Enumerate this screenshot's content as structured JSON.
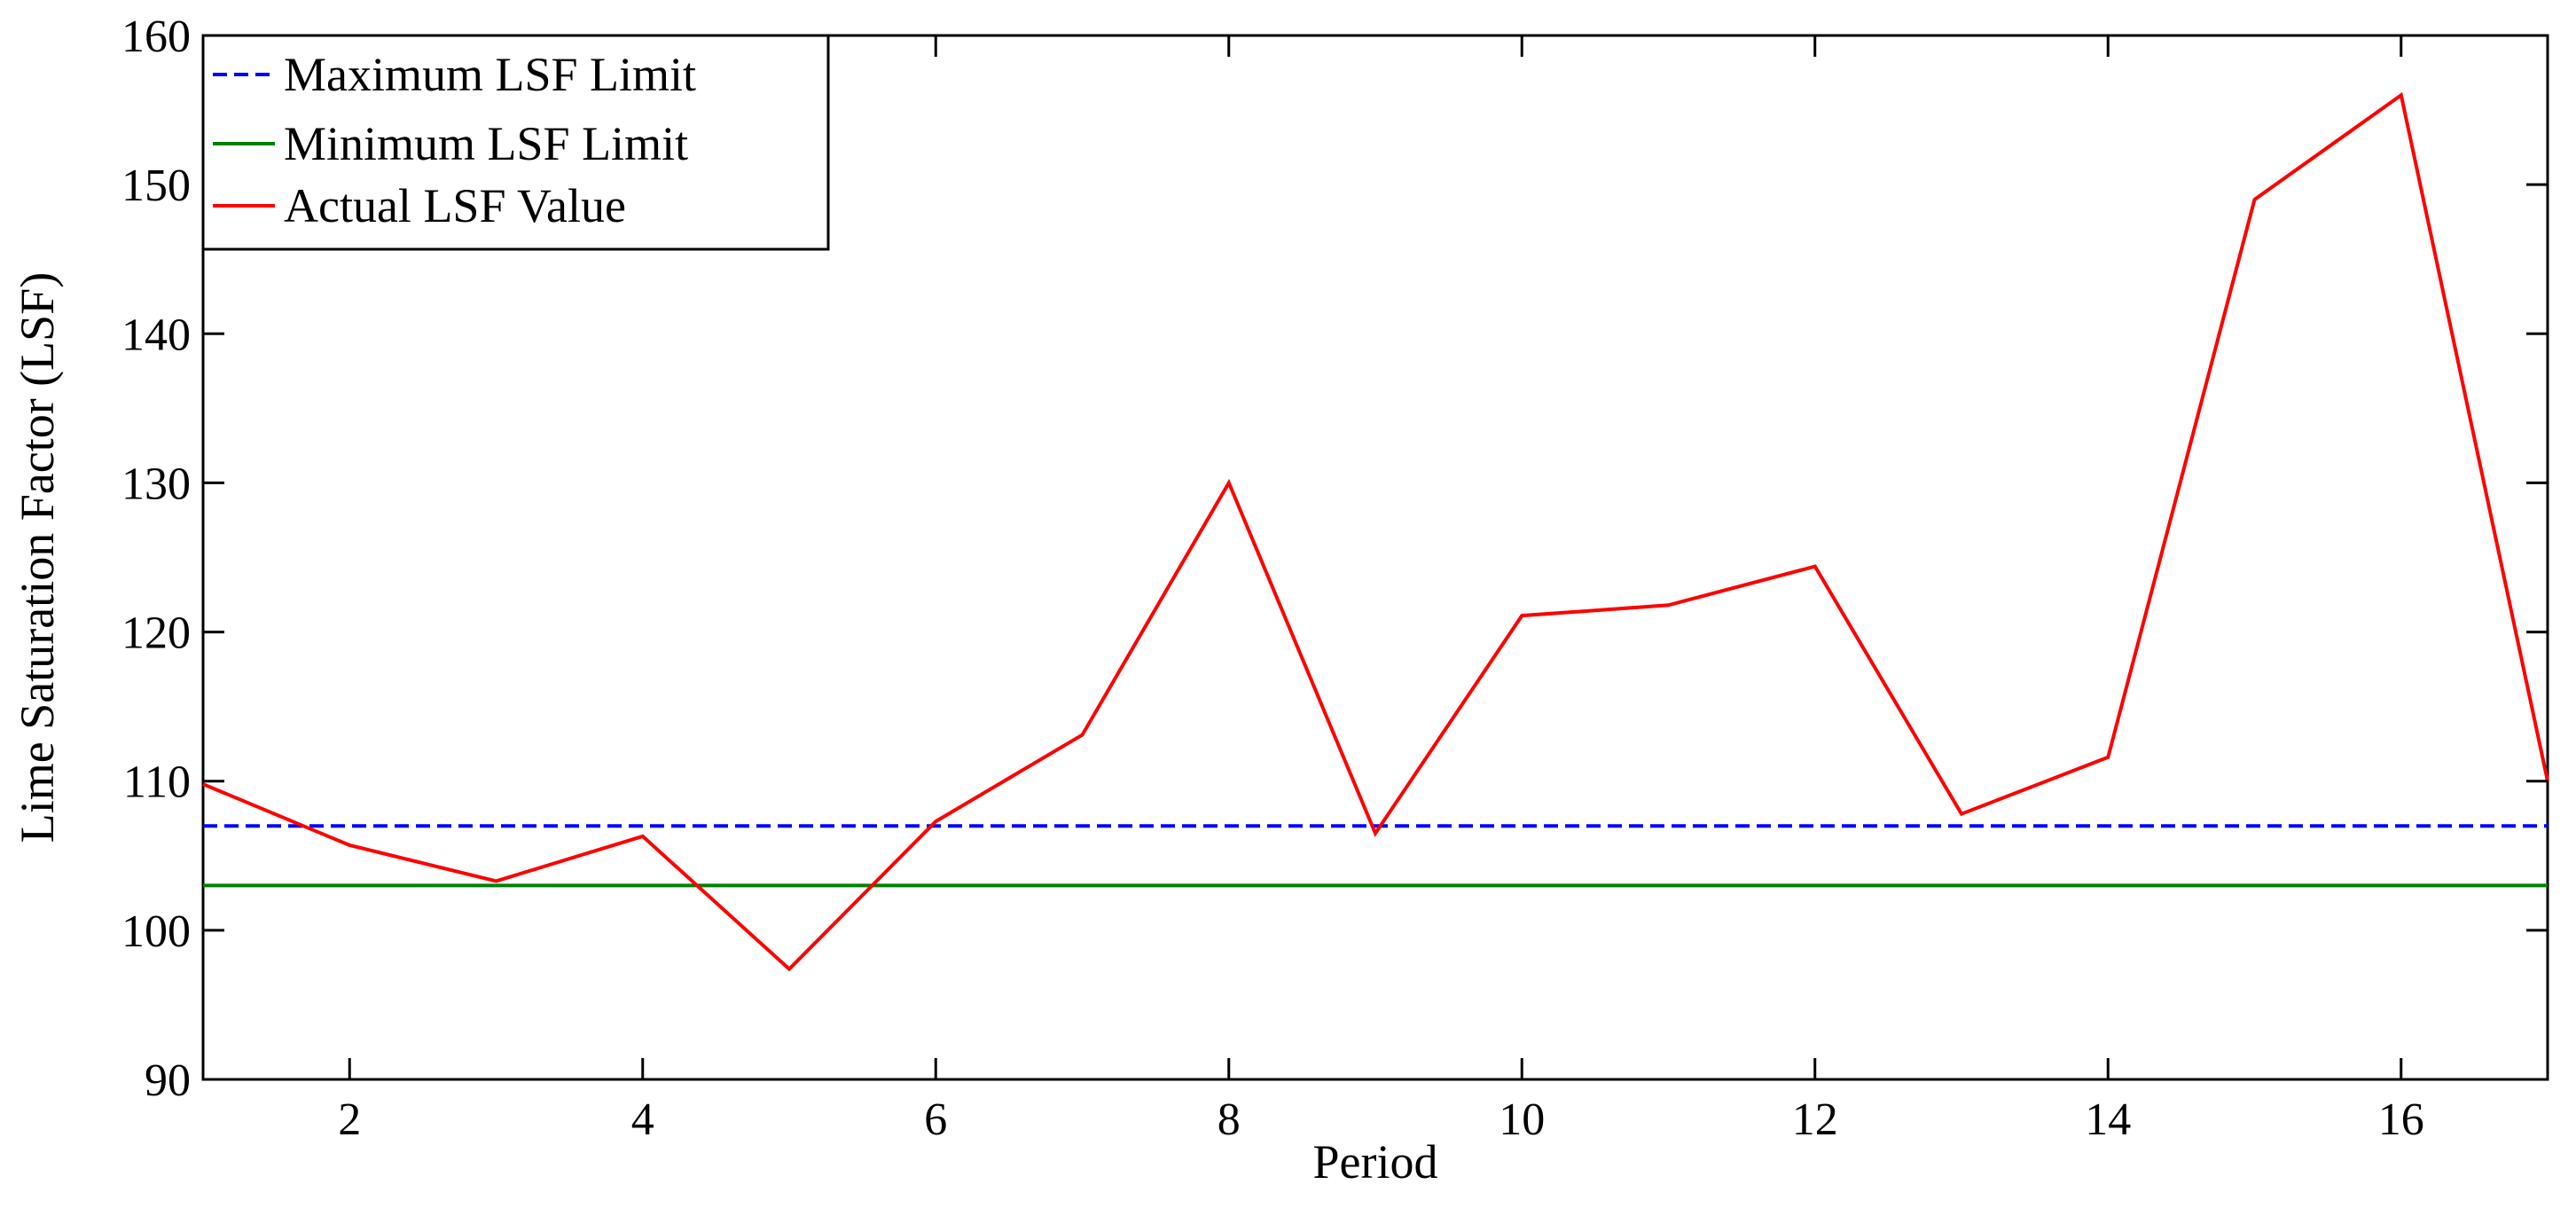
{
  "chart_data": {
    "type": "line",
    "title": "",
    "xlabel": "Period",
    "ylabel": "Lime Saturation Factor (LSF)",
    "xlim": [
      1,
      17
    ],
    "ylim": [
      90,
      160
    ],
    "xticks": [
      2,
      4,
      6,
      8,
      10,
      12,
      14,
      16
    ],
    "yticks": [
      90,
      100,
      110,
      120,
      130,
      140,
      150,
      160
    ],
    "grid": false,
    "legend_position": "top-left",
    "x": [
      1,
      2,
      3,
      4,
      5,
      6,
      7,
      8,
      9,
      10,
      11,
      12,
      13,
      14,
      15,
      16,
      17
    ],
    "series": [
      {
        "name": "Maximum LSF Limit",
        "color": "#0000ff",
        "style": "dashed",
        "values": [
          107,
          107,
          107,
          107,
          107,
          107,
          107,
          107,
          107,
          107,
          107,
          107,
          107,
          107,
          107,
          107,
          107
        ]
      },
      {
        "name": "Minimum LSF Limit",
        "color": "#008000",
        "style": "solid",
        "values": [
          103,
          103,
          103,
          103,
          103,
          103,
          103,
          103,
          103,
          103,
          103,
          103,
          103,
          103,
          103,
          103,
          103
        ]
      },
      {
        "name": "Actual LSF Value",
        "color": "#ff0000",
        "style": "solid",
        "values": [
          109.8,
          105.7,
          103.3,
          106.3,
          97.4,
          107.3,
          113.1,
          130.0,
          106.5,
          121.1,
          121.8,
          124.4,
          107.8,
          111.6,
          149.0,
          156.0,
          110.0
        ]
      }
    ]
  }
}
